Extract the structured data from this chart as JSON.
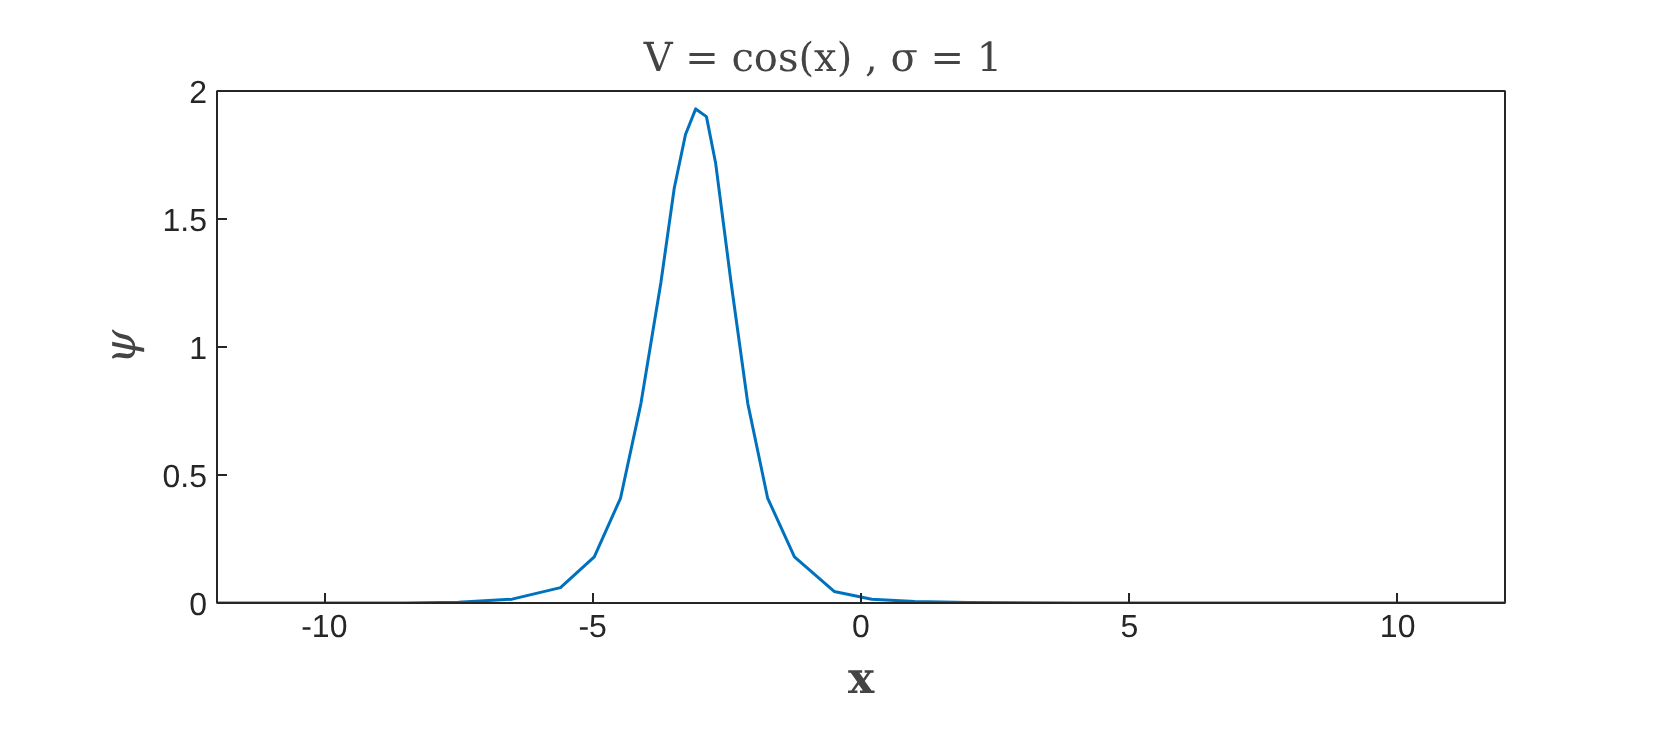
{
  "chart_data": {
    "type": "line",
    "title": "V = cos(x)    ,    σ = 1",
    "xlabel": "x",
    "ylabel": "ψ",
    "xlim": [
      -12,
      12
    ],
    "ylim": [
      0,
      2
    ],
    "xticks": [
      -10,
      -5,
      0,
      5,
      10
    ],
    "yticks": [
      0,
      0.5,
      1,
      1.5,
      2
    ],
    "grid": false,
    "series": [
      {
        "color": "#0072bd",
        "x": [
          -12,
          -10,
          -8.5,
          -7.5,
          -6.5,
          -5.6,
          -4.97,
          -4.48,
          -4.1,
          -3.73,
          -3.48,
          -3.27,
          -3.08,
          -2.88,
          -2.71,
          -2.42,
          -2.11,
          -1.74,
          -1.24,
          -0.5,
          0.2,
          1,
          2,
          4,
          6,
          8,
          10,
          12
        ],
        "values": [
          0,
          0,
          0,
          0.003,
          0.015,
          0.06,
          0.18,
          0.41,
          0.78,
          1.25,
          1.62,
          1.83,
          1.93,
          1.9,
          1.72,
          1.25,
          0.78,
          0.41,
          0.18,
          0.045,
          0.015,
          0.006,
          0.002,
          0,
          0,
          0,
          0,
          0
        ]
      }
    ]
  }
}
